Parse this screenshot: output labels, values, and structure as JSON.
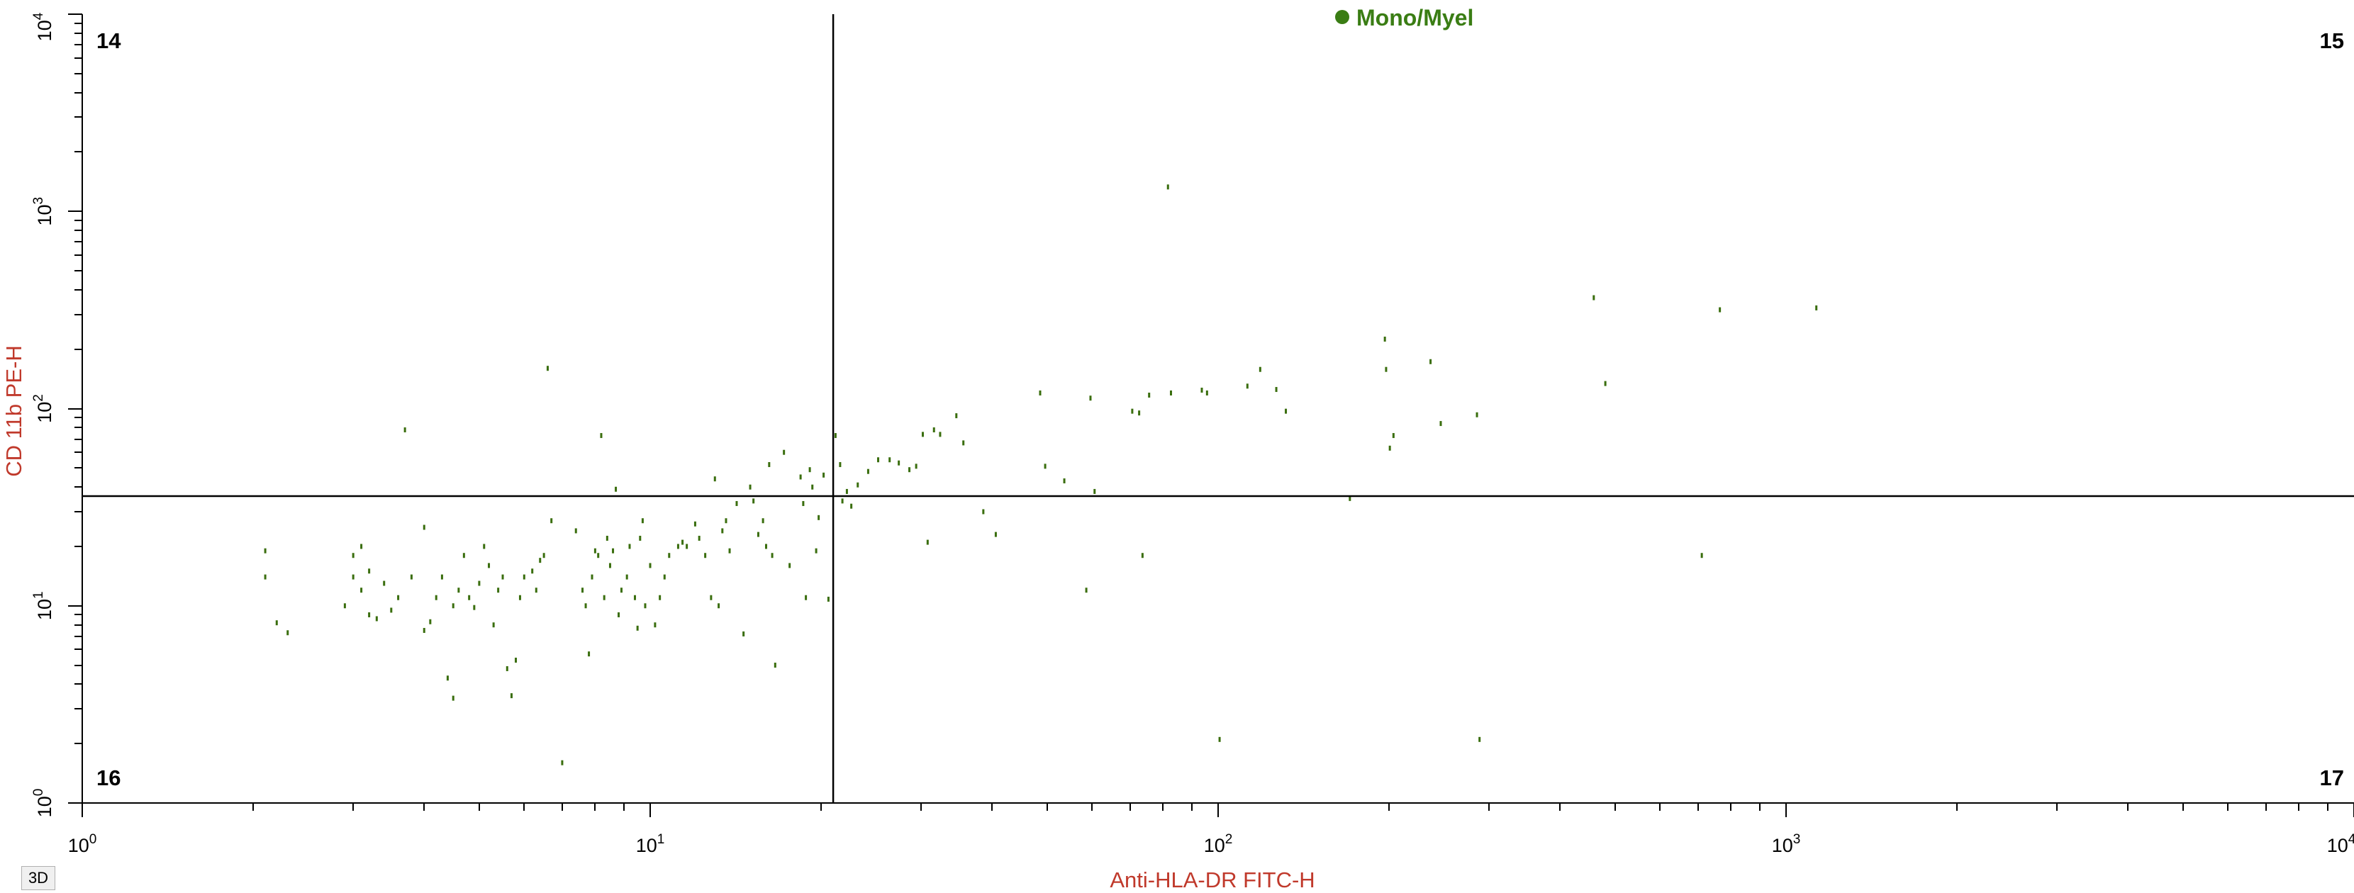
{
  "chart_data": {
    "type": "scatter",
    "gate_label": "Mono/Myel",
    "xlabel": "Anti-HLA-DR FITC-H",
    "ylabel": "CD 11b PE-H",
    "x_scale": "log",
    "y_scale": "log",
    "xlim": [
      1,
      10000
    ],
    "ylim": [
      1,
      10000
    ],
    "x_ticks": [
      {
        "value": 1,
        "base": "10",
        "exp": "0"
      },
      {
        "value": 10,
        "base": "10",
        "exp": "1"
      },
      {
        "value": 100,
        "base": "10",
        "exp": "2"
      },
      {
        "value": 1000,
        "base": "10",
        "exp": "3"
      },
      {
        "value": 10000,
        "base": "10",
        "exp": "4"
      }
    ],
    "y_ticks": [
      {
        "value": 1,
        "base": "10",
        "exp": "0"
      },
      {
        "value": 10,
        "base": "10",
        "exp": "1"
      },
      {
        "value": 100,
        "base": "10",
        "exp": "2"
      },
      {
        "value": 1000,
        "base": "10",
        "exp": "3"
      },
      {
        "value": 10000,
        "base": "10",
        "exp": "4"
      }
    ],
    "quadrant_lines": {
      "x": 21,
      "y": 36
    },
    "quadrants": {
      "top_left": "14",
      "top_right": "15",
      "bottom_left": "16",
      "bottom_right": "17"
    },
    "grid": false,
    "points": [
      [
        2.1,
        19
      ],
      [
        2.1,
        14
      ],
      [
        2.2,
        8.2
      ],
      [
        2.3,
        7.3
      ],
      [
        2.9,
        10
      ],
      [
        3.0,
        18
      ],
      [
        3.1,
        20
      ],
      [
        3.0,
        14
      ],
      [
        3.2,
        9
      ],
      [
        3.3,
        8.6
      ],
      [
        3.1,
        12
      ],
      [
        3.2,
        15
      ],
      [
        3.4,
        13
      ],
      [
        3.5,
        9.5
      ],
      [
        3.6,
        11
      ],
      [
        3.8,
        14
      ],
      [
        3.7,
        78
      ],
      [
        4.0,
        25
      ],
      [
        4.0,
        7.5
      ],
      [
        4.1,
        8.3
      ],
      [
        4.2,
        11
      ],
      [
        4.3,
        14
      ],
      [
        4.4,
        4.3
      ],
      [
        4.5,
        3.4
      ],
      [
        4.5,
        10
      ],
      [
        4.6,
        12
      ],
      [
        4.7,
        18
      ],
      [
        4.8,
        11
      ],
      [
        4.9,
        9.8
      ],
      [
        5.0,
        13
      ],
      [
        5.1,
        20
      ],
      [
        5.2,
        16
      ],
      [
        5.3,
        8
      ],
      [
        5.4,
        12
      ],
      [
        5.5,
        14
      ],
      [
        5.6,
        4.8
      ],
      [
        5.7,
        3.5
      ],
      [
        5.8,
        5.3
      ],
      [
        5.9,
        11
      ],
      [
        6.0,
        14
      ],
      [
        6.2,
        15
      ],
      [
        6.3,
        12
      ],
      [
        6.4,
        17
      ],
      [
        6.5,
        18
      ],
      [
        6.6,
        160
      ],
      [
        6.7,
        27
      ],
      [
        7.0,
        1.6
      ],
      [
        7.4,
        24
      ],
      [
        7.6,
        12
      ],
      [
        7.7,
        10
      ],
      [
        7.8,
        5.7
      ],
      [
        7.9,
        14
      ],
      [
        8.0,
        19
      ],
      [
        8.1,
        18
      ],
      [
        8.2,
        73
      ],
      [
        8.3,
        11
      ],
      [
        8.4,
        22
      ],
      [
        8.5,
        16
      ],
      [
        8.6,
        19
      ],
      [
        8.7,
        39
      ],
      [
        8.8,
        9
      ],
      [
        8.9,
        12
      ],
      [
        9.1,
        14
      ],
      [
        9.2,
        20
      ],
      [
        9.4,
        11
      ],
      [
        9.5,
        7.7
      ],
      [
        9.6,
        22
      ],
      [
        9.7,
        27
      ],
      [
        9.8,
        10
      ],
      [
        10,
        16
      ],
      [
        10.2,
        8
      ],
      [
        10.4,
        11
      ],
      [
        10.6,
        14
      ],
      [
        10.8,
        18
      ],
      [
        11.2,
        20
      ],
      [
        11.4,
        21
      ],
      [
        11.6,
        20
      ],
      [
        12.0,
        26
      ],
      [
        12.2,
        22
      ],
      [
        12.5,
        18
      ],
      [
        12.8,
        11
      ],
      [
        13,
        44
      ],
      [
        13.2,
        10
      ],
      [
        13.4,
        24
      ],
      [
        13.6,
        27
      ],
      [
        13.8,
        19
      ],
      [
        14.2,
        33
      ],
      [
        14.6,
        7.2
      ],
      [
        15,
        40
      ],
      [
        15.2,
        34
      ],
      [
        15.5,
        23
      ],
      [
        15.8,
        27
      ],
      [
        16,
        20
      ],
      [
        16.2,
        52
      ],
      [
        16.4,
        18
      ],
      [
        16.6,
        5
      ],
      [
        17.2,
        60
      ],
      [
        17.6,
        16
      ],
      [
        18.4,
        45
      ],
      [
        18.6,
        33
      ],
      [
        18.8,
        11
      ],
      [
        19.1,
        49
      ],
      [
        19.3,
        40
      ],
      [
        19.6,
        19
      ],
      [
        19.8,
        28
      ],
      [
        20.2,
        46
      ],
      [
        20.6,
        10.8
      ],
      [
        21.2,
        73
      ],
      [
        21.6,
        52
      ],
      [
        21.8,
        34
      ],
      [
        22.2,
        38
      ],
      [
        22.6,
        32
      ],
      [
        23.2,
        41
      ],
      [
        24.2,
        48
      ],
      [
        25.2,
        55
      ],
      [
        26.4,
        55
      ],
      [
        27.4,
        53
      ],
      [
        28.6,
        49
      ],
      [
        29.4,
        51
      ],
      [
        30.2,
        74
      ],
      [
        30.8,
        21
      ],
      [
        31.6,
        78
      ],
      [
        32.4,
        74
      ],
      [
        34.6,
        92
      ],
      [
        35.6,
        67
      ],
      [
        38.6,
        30
      ],
      [
        40.6,
        23
      ],
      [
        48.6,
        120
      ],
      [
        49.6,
        51
      ],
      [
        53.6,
        43
      ],
      [
        58.6,
        12
      ],
      [
        59.6,
        113
      ],
      [
        60.6,
        38
      ],
      [
        70.6,
        97
      ],
      [
        72.6,
        95
      ],
      [
        73.6,
        18
      ],
      [
        75.6,
        117
      ],
      [
        81.6,
        1330
      ],
      [
        82.6,
        120
      ],
      [
        93.6,
        124
      ],
      [
        95.6,
        120
      ],
      [
        100.6,
        2.1
      ],
      [
        112.6,
        130
      ],
      [
        118.6,
        158
      ],
      [
        126.6,
        125
      ],
      [
        131.6,
        97
      ],
      [
        170.6,
        35
      ],
      [
        196.6,
        225
      ],
      [
        197.6,
        158
      ],
      [
        200.6,
        63
      ],
      [
        203.6,
        73
      ],
      [
        236.6,
        173
      ],
      [
        246.6,
        84
      ],
      [
        285.6,
        93
      ],
      [
        288.6,
        2.1
      ],
      [
        458.6,
        365
      ],
      [
        480.6,
        134
      ],
      [
        710.6,
        18
      ],
      [
        764.6,
        317
      ],
      [
        1130.6,
        324
      ]
    ]
  },
  "colors": {
    "points": "#3a6e0e",
    "gate_marker": "#3a7d14",
    "axis_label": "#c0392b",
    "axes": "#000000",
    "quadrant_line": "#000000"
  },
  "ui": {
    "three_d_button": "3D"
  }
}
